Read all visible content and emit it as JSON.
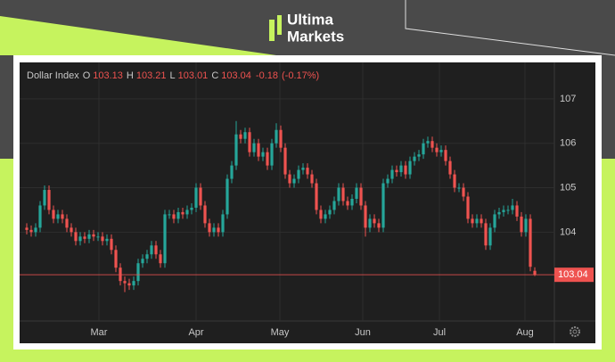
{
  "logo": {
    "line1": "Ultima",
    "line2": "Markets"
  },
  "chart_data": {
    "type": "candlestick",
    "series": [
      {
        "name": "Dollar Index",
        "up_color": "#26a69a",
        "down_color": "#ef5350",
        "open": [
          104.1,
          104.05,
          104.0,
          104.1,
          104.6,
          104.95,
          104.5,
          104.3,
          104.4,
          104.3,
          104.1,
          104.0,
          103.8,
          103.9,
          103.85,
          103.95,
          103.9,
          103.9,
          103.8,
          103.85,
          103.6,
          103.2,
          102.9,
          102.85,
          102.8,
          102.9,
          103.3,
          103.4,
          103.5,
          103.7,
          103.5,
          103.3,
          104.4,
          104.4,
          104.3,
          104.45,
          104.4,
          104.5,
          104.55,
          105.0,
          104.6,
          104.2,
          104.0,
          104.1,
          104.0,
          104.4,
          105.2,
          105.5,
          106.2,
          106.1,
          106.25,
          105.8,
          106.0,
          105.7,
          105.8,
          105.5,
          106.0,
          106.3,
          105.9,
          105.3,
          105.1,
          105.2,
          105.4,
          105.45,
          105.3,
          105.1,
          104.5,
          104.3,
          104.4,
          104.5,
          104.7,
          105.0,
          104.7,
          104.6,
          104.75,
          105.0,
          104.6,
          104.1,
          104.3,
          104.2,
          104.1,
          105.1,
          105.2,
          105.4,
          105.35,
          105.5,
          105.3,
          105.6,
          105.7,
          105.75,
          106.0,
          106.05,
          105.9,
          105.8,
          105.85,
          105.6,
          105.3,
          105.0,
          105.0,
          104.8,
          104.3,
          104.2,
          104.3,
          104.2,
          103.7,
          104.1,
          104.4,
          104.45,
          104.5,
          104.5,
          104.6,
          104.35,
          104.0,
          104.3,
          103.13
        ],
        "high": [
          104.2,
          104.15,
          104.2,
          104.7,
          105.05,
          105.05,
          104.6,
          104.5,
          104.5,
          104.4,
          104.2,
          104.1,
          104.0,
          104.0,
          104.05,
          104.05,
          104.0,
          104.0,
          103.95,
          103.95,
          103.7,
          103.3,
          103.0,
          102.95,
          103.0,
          103.4,
          103.5,
          103.6,
          103.8,
          103.8,
          103.6,
          104.5,
          104.5,
          104.5,
          104.55,
          104.55,
          104.6,
          104.65,
          105.1,
          105.1,
          104.7,
          104.3,
          104.2,
          104.2,
          104.5,
          105.3,
          105.6,
          106.5,
          106.3,
          106.35,
          106.35,
          106.1,
          106.1,
          105.9,
          105.9,
          106.1,
          106.45,
          106.4,
          106.0,
          105.4,
          105.3,
          105.5,
          105.55,
          105.55,
          105.4,
          105.2,
          104.6,
          104.5,
          104.6,
          104.8,
          105.1,
          105.1,
          104.8,
          104.85,
          105.1,
          105.1,
          104.7,
          104.4,
          104.4,
          104.3,
          105.2,
          105.3,
          105.5,
          105.5,
          105.6,
          105.6,
          105.7,
          105.8,
          105.85,
          106.1,
          106.15,
          106.15,
          106.0,
          105.95,
          105.95,
          105.7,
          105.4,
          105.1,
          105.1,
          104.9,
          104.4,
          104.4,
          104.4,
          104.3,
          104.2,
          104.5,
          104.55,
          104.6,
          104.6,
          104.75,
          104.7,
          104.45,
          104.4,
          104.4,
          103.21
        ],
        "low": [
          103.95,
          103.9,
          103.9,
          104.0,
          104.5,
          104.4,
          104.2,
          104.2,
          104.2,
          104.0,
          103.9,
          103.7,
          103.7,
          103.75,
          103.75,
          103.8,
          103.8,
          103.7,
          103.7,
          103.5,
          103.1,
          102.8,
          102.65,
          102.7,
          102.7,
          102.8,
          103.2,
          103.3,
          103.4,
          103.4,
          103.2,
          103.2,
          104.3,
          104.2,
          104.2,
          104.3,
          104.3,
          104.4,
          104.45,
          104.5,
          104.1,
          103.9,
          103.9,
          103.9,
          103.9,
          104.3,
          105.1,
          105.4,
          106.0,
          106.0,
          105.7,
          105.7,
          105.6,
          105.6,
          105.4,
          105.4,
          105.9,
          105.8,
          105.2,
          105.0,
          105.0,
          105.1,
          105.3,
          105.2,
          105.0,
          104.4,
          104.2,
          104.2,
          104.3,
          104.4,
          104.6,
          104.6,
          104.5,
          104.5,
          104.65,
          104.5,
          103.9,
          104.0,
          104.1,
          104.0,
          104.0,
          105.0,
          105.1,
          105.25,
          105.25,
          105.2,
          105.2,
          105.5,
          105.6,
          105.65,
          105.9,
          105.8,
          105.7,
          105.7,
          105.5,
          105.2,
          104.9,
          104.9,
          104.7,
          104.2,
          104.1,
          104.1,
          104.1,
          103.6,
          103.6,
          104.0,
          104.3,
          104.35,
          104.4,
          104.4,
          104.25,
          103.9,
          103.9,
          103.12,
          103.01
        ],
        "close": [
          104.05,
          104.0,
          104.1,
          104.6,
          104.95,
          104.5,
          104.3,
          104.4,
          104.3,
          104.1,
          104.0,
          103.8,
          103.9,
          103.85,
          103.95,
          103.9,
          103.9,
          103.8,
          103.85,
          103.6,
          103.2,
          102.9,
          102.85,
          102.8,
          102.9,
          103.3,
          103.4,
          103.5,
          103.7,
          103.5,
          103.3,
          104.4,
          104.4,
          104.3,
          104.45,
          104.4,
          104.5,
          104.55,
          105.0,
          104.6,
          104.2,
          104.0,
          104.1,
          104.0,
          104.4,
          105.2,
          105.5,
          106.2,
          106.1,
          106.25,
          105.8,
          106.0,
          105.7,
          105.8,
          105.5,
          106.0,
          106.3,
          105.9,
          105.3,
          105.1,
          105.2,
          105.4,
          105.45,
          105.3,
          105.1,
          104.5,
          104.3,
          104.4,
          104.5,
          104.7,
          105.0,
          104.7,
          104.6,
          104.75,
          105.0,
          104.6,
          104.1,
          104.3,
          104.2,
          104.1,
          105.1,
          105.2,
          105.4,
          105.35,
          105.5,
          105.3,
          105.6,
          105.7,
          105.75,
          106.0,
          106.05,
          105.9,
          105.8,
          105.85,
          105.6,
          105.3,
          105.0,
          105.0,
          104.8,
          104.3,
          104.2,
          104.3,
          104.2,
          103.7,
          104.1,
          104.4,
          104.45,
          104.5,
          104.5,
          104.6,
          104.35,
          104.0,
          104.3,
          103.22,
          103.04
        ]
      }
    ],
    "header": {
      "items": [
        {
          "label": "O",
          "value": 103.13
        },
        {
          "label": "H",
          "value": 103.21
        },
        {
          "label": "L",
          "value": 103.01
        },
        {
          "label": "C",
          "value": 103.04
        }
      ],
      "change": -0.18,
      "change_percent": {
        "value": -0.17,
        "label": "(-0.17%)"
      }
    },
    "last_price": 103.04,
    "last_price_color": "#ef5350",
    "xlim": [
      -1,
      115
    ],
    "xticks": [
      {
        "value": 16.2,
        "label": "Mar"
      },
      {
        "value": 38,
        "label": "Apr"
      },
      {
        "value": 56.8,
        "label": "May"
      },
      {
        "value": 75.4,
        "label": "Jun"
      },
      {
        "value": 92.6,
        "label": "Jul"
      },
      {
        "value": 111.8,
        "label": "Aug"
      }
    ],
    "ylim": [
      102,
      107.78
    ],
    "yticks": [
      104,
      105,
      106,
      107
    ],
    "grid": true
  }
}
